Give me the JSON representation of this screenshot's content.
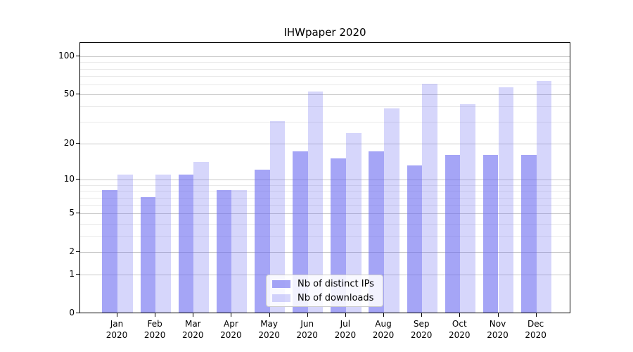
{
  "chart_data": {
    "type": "bar",
    "title": "IHWpaper 2020",
    "categories": [
      "Jan 2020",
      "Feb 2020",
      "Mar 2020",
      "Apr 2020",
      "May 2020",
      "Jun 2020",
      "Jul 2020",
      "Aug 2020",
      "Sep 2020",
      "Oct 2020",
      "Nov 2020",
      "Dec 2020"
    ],
    "series": [
      {
        "name": "Nb of distinct IPs",
        "color": "rgba(105,105,240,0.60)",
        "values": [
          8,
          7,
          11,
          8,
          12,
          17,
          15,
          17,
          13,
          16,
          16,
          16
        ]
      },
      {
        "name": "Nb of downloads",
        "color": "rgba(105,105,240,0.27)",
        "values": [
          11,
          11,
          14,
          8,
          30,
          52,
          24,
          38,
          60,
          41,
          56,
          63
        ]
      }
    ],
    "y_axis": {
      "scale": "log1p",
      "ticks_major": [
        0,
        1,
        2,
        5,
        10,
        20,
        50,
        100
      ],
      "ticks_minor": [
        3,
        4,
        6,
        7,
        8,
        9,
        30,
        40,
        60,
        70,
        80,
        90
      ],
      "range_top": 125
    },
    "legend": {
      "position": "lower center"
    },
    "grid": true,
    "colors": {
      "major_grid": "#c8c8c8",
      "minor_grid": "#e9e9e9",
      "axis": "#000000",
      "background": "#ffffff"
    }
  }
}
